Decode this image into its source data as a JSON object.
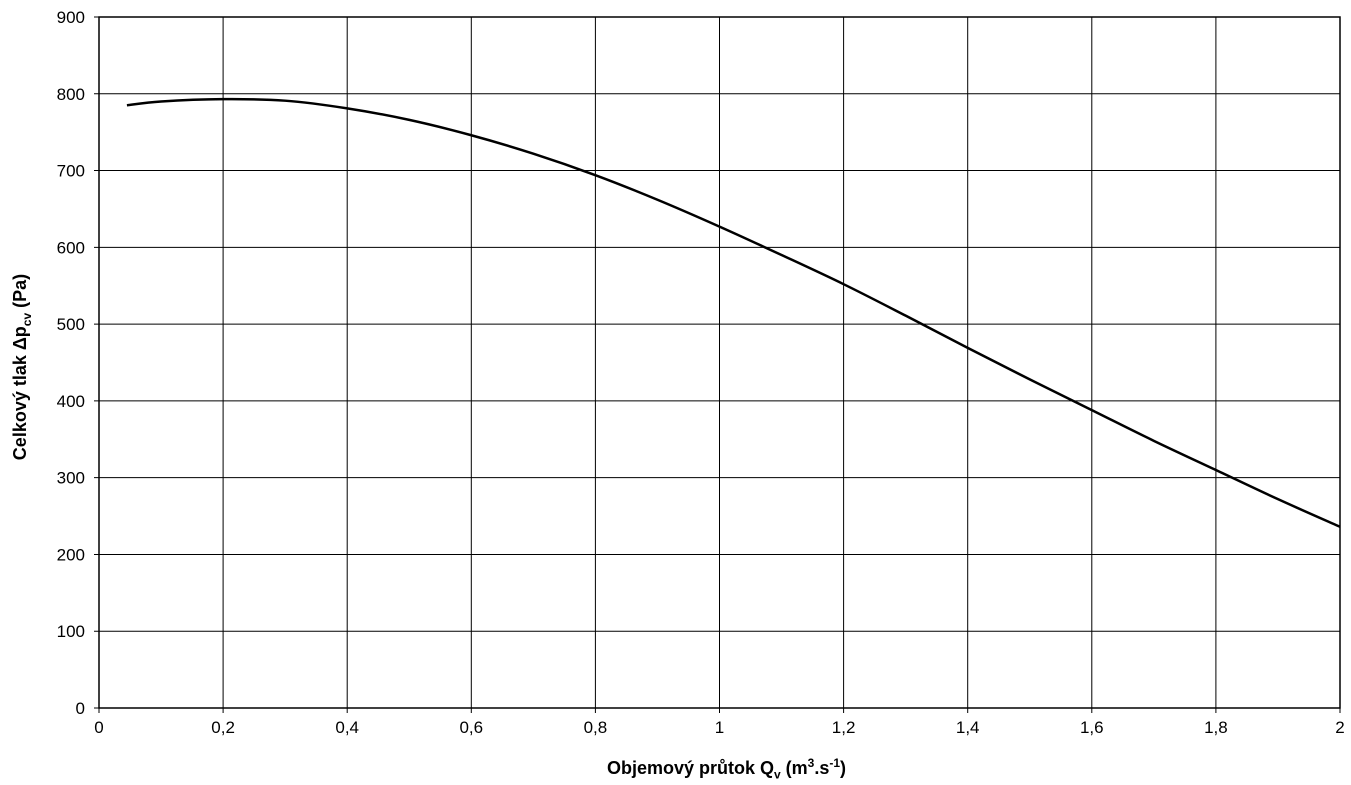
{
  "chart_data": {
    "type": "line",
    "title": "",
    "xlabel": {
      "main": "Objemový průtok Q",
      "sub": "v",
      "unit_open": " (m",
      "sup1": "3",
      "mid": ".s",
      "sup2": "-1",
      "close": ")"
    },
    "ylabel": {
      "main": "Celkový tlak  Δp",
      "sub": "cv",
      "unit": " (Pa)"
    },
    "xlim": [
      0,
      2
    ],
    "ylim": [
      0,
      900
    ],
    "xticks": [
      0,
      0.2,
      0.4,
      0.6,
      0.8,
      1,
      1.2,
      1.4,
      1.6,
      1.8,
      2
    ],
    "xtick_labels": [
      "0",
      "0,2",
      "0,4",
      "0,6",
      "0,8",
      "1",
      "1,2",
      "1,4",
      "1,6",
      "1,8",
      "2"
    ],
    "yticks": [
      0,
      100,
      200,
      300,
      400,
      500,
      600,
      700,
      800,
      900
    ],
    "ytick_labels": [
      "0",
      "100",
      "200",
      "300",
      "400",
      "500",
      "600",
      "700",
      "800",
      "900"
    ],
    "grid": true,
    "legend": "none",
    "series": [
      {
        "color": "#000000",
        "x": [
          0.045,
          0.1,
          0.2,
          0.3,
          0.4,
          0.5,
          0.6,
          0.7,
          0.8,
          0.9,
          1.0,
          1.1,
          1.2,
          1.3,
          1.4,
          1.5,
          1.6,
          1.7,
          1.8,
          1.9,
          2.0
        ],
        "y": [
          785,
          790,
          793,
          791,
          781,
          766,
          746,
          722,
          694,
          662,
          627,
          590,
          552,
          511,
          469,
          428,
          388,
          348,
          310,
          272,
          236
        ]
      }
    ]
  }
}
